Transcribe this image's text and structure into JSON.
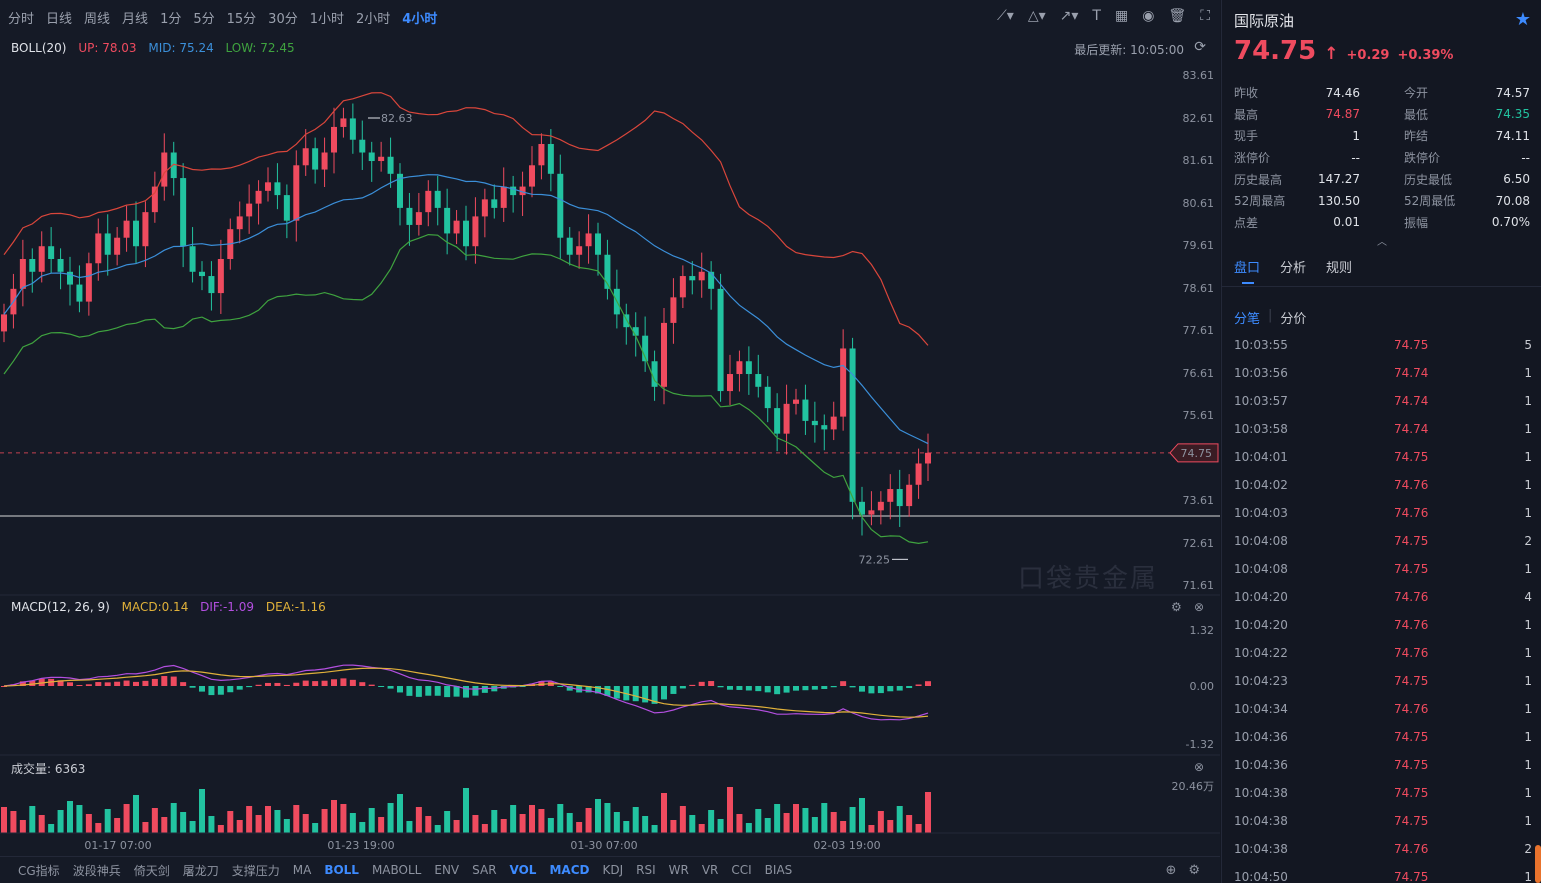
{
  "toolbar": {
    "timeframes": [
      "分时",
      "日线",
      "周线",
      "月线",
      "1分",
      "5分",
      "15分",
      "30分",
      "1小时",
      "2小时",
      "4小时"
    ],
    "active_index": 10,
    "tool_icons": [
      "line-tool-icon",
      "shape-tool-icon",
      "arrow-tool-icon",
      "text-tool-icon",
      "measure-tool-icon",
      "eye-icon",
      "trash-icon",
      "fullscreen-icon"
    ]
  },
  "boll": {
    "name": "BOLL(20)",
    "up": "UP: 78.03",
    "mid": "MID: 75.24",
    "low": "LOW: 72.45"
  },
  "last_update": "最后更新: 10:05:00",
  "price_axis": [
    "83.61",
    "82.61",
    "81.61",
    "80.61",
    "79.61",
    "78.61",
    "77.61",
    "76.61",
    "75.61",
    "74.75",
    "73.61",
    "72.61",
    "71.61"
  ],
  "annotations": {
    "high": "82.63",
    "low": "72.25",
    "current": "74.75"
  },
  "time_axis": [
    "01-17 07:00",
    "01-23 19:00",
    "01-30 07:00",
    "02-03 19:00"
  ],
  "macd": {
    "name": "MACD(12, 26, 9)",
    "macd": "MACD:0.14",
    "dif": "DIF:-1.09",
    "dea": "DEA:-1.16",
    "axis": [
      "1.32",
      "0.00",
      "-1.32"
    ]
  },
  "volume": {
    "label": "成交量: 6363",
    "axis_max": "20.46万"
  },
  "indicators": [
    "CG指标",
    "波段神兵",
    "倚天剑",
    "屠龙刀",
    "支撑压力",
    "MA",
    "BOLL",
    "MABOLL",
    "ENV",
    "SAR",
    "VOL",
    "MACD",
    "KDJ",
    "RSI",
    "WR",
    "VR",
    "CCI",
    "BIAS"
  ],
  "active_indicators": [
    "BOLL",
    "VOL",
    "MACD"
  ],
  "watermark": "口袋贵金属",
  "colors": {
    "up": "#ef4b5f",
    "down": "#22c3a0",
    "accent": "#3d8bff",
    "boll_up": "#d9463b",
    "boll_mid": "#3b8fd9",
    "boll_low": "#3fa33f",
    "dif": "#b34fe0",
    "dea": "#e0b13a"
  },
  "panel": {
    "name": "国际原油",
    "price": "74.75",
    "change": "+0.29",
    "change_pct": "+0.39%",
    "stats": [
      [
        {
          "label": "昨收",
          "value": "74.46",
          "tone": "plain"
        },
        {
          "label": "今开",
          "value": "74.57",
          "tone": "plain"
        }
      ],
      [
        {
          "label": "最高",
          "value": "74.87",
          "tone": "up"
        },
        {
          "label": "最低",
          "value": "74.35",
          "tone": "down"
        }
      ],
      [
        {
          "label": "现手",
          "value": "1",
          "tone": "plain"
        },
        {
          "label": "昨结",
          "value": "74.11",
          "tone": "plain"
        }
      ],
      [
        {
          "label": "涨停价",
          "value": "--",
          "tone": "plain"
        },
        {
          "label": "跌停价",
          "value": "--",
          "tone": "plain"
        }
      ],
      [
        {
          "label": "历史最高",
          "value": "147.27",
          "tone": "plain"
        },
        {
          "label": "历史最低",
          "value": "6.50",
          "tone": "plain"
        }
      ],
      [
        {
          "label": "52周最高",
          "value": "130.50",
          "tone": "plain"
        },
        {
          "label": "52周最低",
          "value": "70.08",
          "tone": "plain"
        }
      ],
      [
        {
          "label": "点差",
          "value": "0.01",
          "tone": "plain"
        },
        {
          "label": "振幅",
          "value": "0.70%",
          "tone": "plain"
        }
      ]
    ],
    "tabs": [
      "盘口",
      "分析",
      "规则"
    ],
    "subtabs": [
      "分笔",
      "分价"
    ],
    "ticks": [
      [
        "10:03:55",
        "74.75",
        "5"
      ],
      [
        "10:03:56",
        "74.74",
        "1"
      ],
      [
        "10:03:57",
        "74.74",
        "1"
      ],
      [
        "10:03:58",
        "74.74",
        "1"
      ],
      [
        "10:04:01",
        "74.75",
        "1"
      ],
      [
        "10:04:02",
        "74.76",
        "1"
      ],
      [
        "10:04:03",
        "74.76",
        "1"
      ],
      [
        "10:04:08",
        "74.75",
        "2"
      ],
      [
        "10:04:08",
        "74.75",
        "1"
      ],
      [
        "10:04:20",
        "74.76",
        "4"
      ],
      [
        "10:04:20",
        "74.76",
        "1"
      ],
      [
        "10:04:22",
        "74.76",
        "1"
      ],
      [
        "10:04:23",
        "74.75",
        "1"
      ],
      [
        "10:04:34",
        "74.76",
        "1"
      ],
      [
        "10:04:36",
        "74.75",
        "1"
      ],
      [
        "10:04:36",
        "74.75",
        "1"
      ],
      [
        "10:04:38",
        "74.75",
        "1"
      ],
      [
        "10:04:38",
        "74.75",
        "1"
      ],
      [
        "10:04:38",
        "74.76",
        "2"
      ],
      [
        "10:04:50",
        "74.75",
        "1"
      ]
    ]
  }
}
